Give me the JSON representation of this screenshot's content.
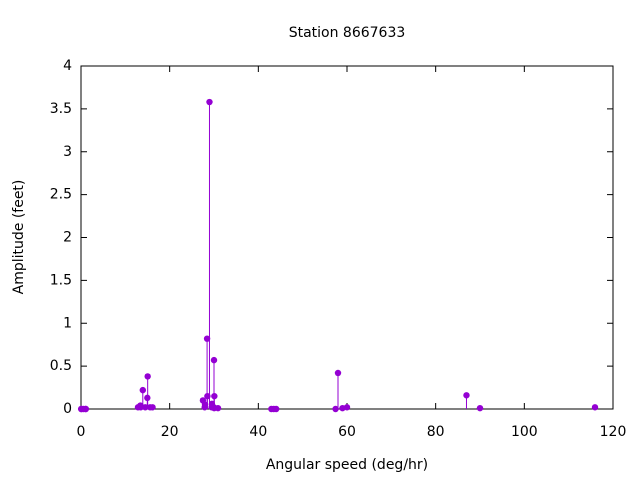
{
  "chart_data": {
    "type": "stem",
    "title": "Station 8667633",
    "x_label": "Angular speed (deg/hr)",
    "y_label": "Amplitude (feet)",
    "x": [
      0.04,
      0.08,
      0.54,
      1.02,
      1.1,
      12.85,
      13.4,
      13.47,
      13.94,
      14.5,
      14.96,
      15.04,
      15.59,
      16.14,
      27.5,
      27.9,
      27.97,
      28.44,
      28.51,
      28.98,
      29.46,
      29.53,
      29.96,
      30.0,
      30.08,
      30.04,
      30.9,
      42.93,
      43.48,
      44.03,
      57.42,
      57.97,
      58.98,
      60.0,
      86.95,
      90.0,
      115.94
    ],
    "values": [
      0.0,
      0.0,
      0.0,
      0.0,
      0.0,
      0.02,
      0.04,
      0.02,
      0.22,
      0.02,
      0.13,
      0.38,
      0.02,
      0.02,
      0.1,
      0.02,
      0.05,
      0.82,
      0.15,
      3.58,
      0.02,
      0.06,
      0.02,
      0.57,
      0.15,
      0.01,
      0.01,
      0.0,
      0.0,
      0.0,
      0.0,
      0.42,
      0.01,
      0.02,
      0.16,
      0.01,
      0.02
    ],
    "color": "#9400d3",
    "xlim": [
      0,
      120
    ],
    "xticks": [
      0,
      20,
      40,
      60,
      80,
      100,
      120
    ],
    "ylim": [
      0,
      4
    ],
    "yticks": [
      0,
      0.5,
      1,
      1.5,
      2,
      2.5,
      3,
      3.5,
      4
    ]
  }
}
